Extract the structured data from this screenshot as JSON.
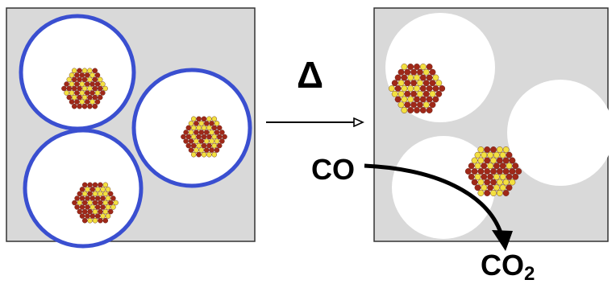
{
  "labels": {
    "heat_symbol": "Δ",
    "reactant": "CO",
    "product_main": "CO",
    "product_subscript": "2"
  },
  "colors": {
    "panel_background": "#d9d9d9",
    "panel_border": "#333333",
    "shell": "#3a4fd0",
    "shell_interior": "#ffffff",
    "void": "#ffffff",
    "particle_atom_dark": "#a02818",
    "particle_atom_light": "#f2e040",
    "arrow": "#000000"
  },
  "icons": {
    "heat_arrow": "hollow-arrowhead-arrow",
    "reaction_arrow": "curved-arrow",
    "nanoparticle": "hexagonal-atom-cluster"
  }
}
